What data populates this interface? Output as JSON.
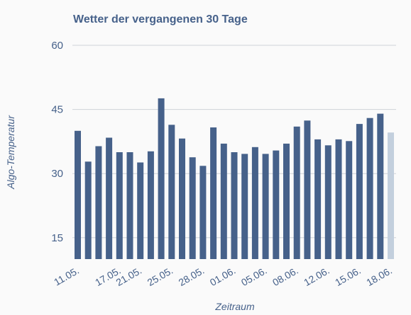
{
  "chart_data": {
    "type": "bar",
    "title": "Wetter der vergangenen 30 Tage",
    "xlabel": "Zeitraum",
    "ylabel": "Algo-Temperatur",
    "ylim": [
      10,
      60
    ],
    "yticks": [
      15,
      30,
      45,
      60
    ],
    "grid": true,
    "x_tick_labels": [
      "11.05.",
      "17.05.",
      "21.05.",
      "25.05.",
      "28.05.",
      "01.06.",
      "05.06.",
      "08.06.",
      "12.06.",
      "15.06.",
      "18.06."
    ],
    "categories": [
      "11.05.",
      "",
      "",
      "",
      "17.05.",
      "",
      "21.05.",
      "",
      "",
      "25.05.",
      "",
      "",
      "28.05.",
      "",
      "",
      "01.06.",
      "",
      "",
      "05.06.",
      "",
      "",
      "08.06.",
      "",
      "",
      "12.06.",
      "",
      "",
      "15.06.",
      "",
      "",
      "18.06."
    ],
    "values": [
      40,
      32.8,
      36.4,
      38.4,
      35,
      35,
      32.6,
      35.2,
      47.6,
      41.4,
      38.2,
      33.8,
      31.8,
      40.8,
      37,
      35,
      34.6,
      36.2,
      34.6,
      35.4,
      37,
      41,
      42.4,
      38,
      36.6,
      38,
      37.6,
      41.6,
      43,
      44,
      39.6
    ],
    "bar_colors": {
      "default": "#46618a",
      "highlight": "#c3cfdd"
    },
    "highlight_index": 30
  }
}
